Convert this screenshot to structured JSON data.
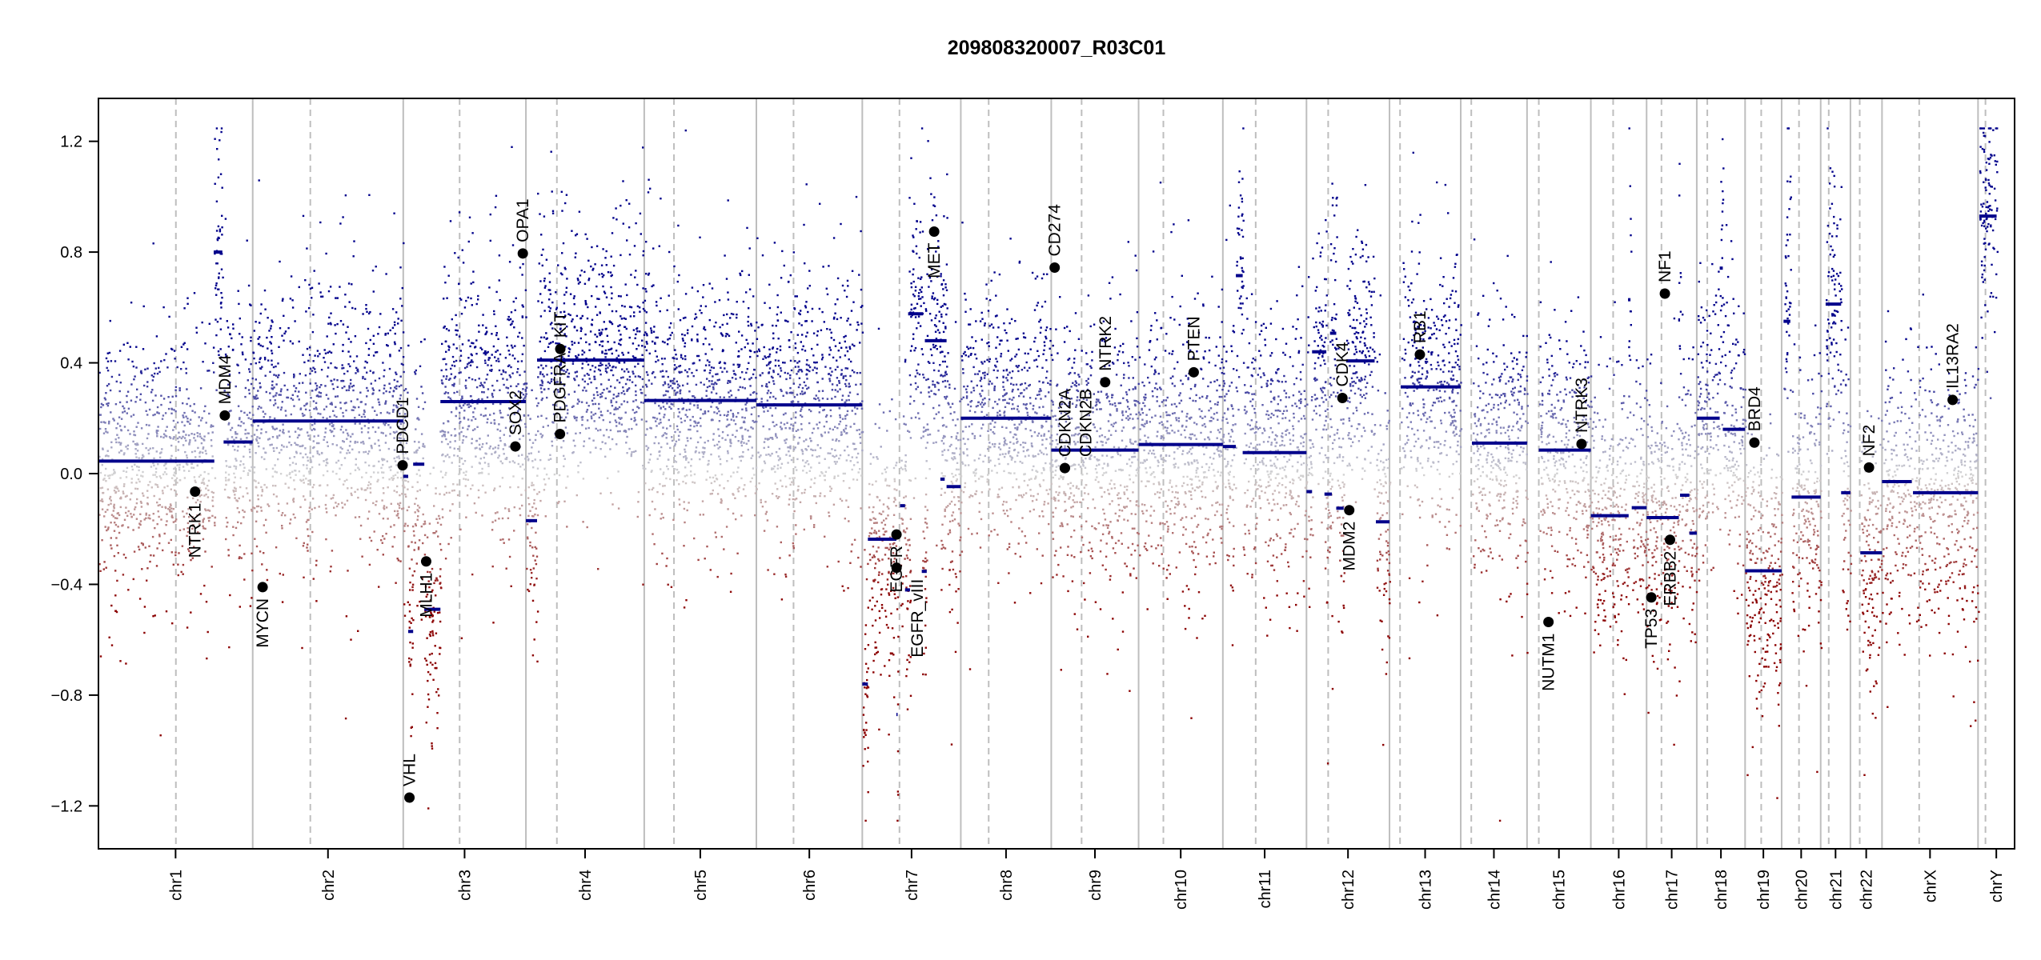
{
  "chart_data": {
    "type": "scatter",
    "title": "209808320007_R03C01",
    "xlabel": "",
    "ylabel": "",
    "ylim": [
      -1.355,
      1.355
    ],
    "yticks": [
      "-1.2",
      "-0.8",
      "-0.4",
      "0.0",
      "0.4",
      "0.8",
      "1.2"
    ],
    "colors": {
      "loss": "#8b0000",
      "neutral": "#d3d3d3",
      "gain": "#00008b",
      "segment": "#00008b",
      "gene": "#000000",
      "chrom_line": "#bebebe"
    },
    "chromosomes": [
      {
        "name": "chr1",
        "length_mb": 249,
        "centromere_mb": 125
      },
      {
        "name": "chr2",
        "length_mb": 243,
        "centromere_mb": 93
      },
      {
        "name": "chr3",
        "length_mb": 198,
        "centromere_mb": 91
      },
      {
        "name": "chr4",
        "length_mb": 191,
        "centromere_mb": 50
      },
      {
        "name": "chr5",
        "length_mb": 181,
        "centromere_mb": 48
      },
      {
        "name": "chr6",
        "length_mb": 171,
        "centromere_mb": 60
      },
      {
        "name": "chr7",
        "length_mb": 159,
        "centromere_mb": 60
      },
      {
        "name": "chr8",
        "length_mb": 146,
        "centromere_mb": 45
      },
      {
        "name": "chr9",
        "length_mb": 141,
        "centromere_mb": 49
      },
      {
        "name": "chr10",
        "length_mb": 136,
        "centromere_mb": 40
      },
      {
        "name": "chr11",
        "length_mb": 135,
        "centromere_mb": 53
      },
      {
        "name": "chr12",
        "length_mb": 134,
        "centromere_mb": 35
      },
      {
        "name": "chr13",
        "length_mb": 115,
        "centromere_mb": 17
      },
      {
        "name": "chr14",
        "length_mb": 107,
        "centromere_mb": 17
      },
      {
        "name": "chr15",
        "length_mb": 103,
        "centromere_mb": 19
      },
      {
        "name": "chr16",
        "length_mb": 90,
        "centromere_mb": 36
      },
      {
        "name": "chr17",
        "length_mb": 81,
        "centromere_mb": 24
      },
      {
        "name": "chr18",
        "length_mb": 78,
        "centromere_mb": 17
      },
      {
        "name": "chr19",
        "length_mb": 59,
        "centromere_mb": 26
      },
      {
        "name": "chr20",
        "length_mb": 63,
        "centromere_mb": 28
      },
      {
        "name": "chr21",
        "length_mb": 48,
        "centromere_mb": 13
      },
      {
        "name": "chr22",
        "length_mb": 51,
        "centromere_mb": 15
      },
      {
        "name": "chrX",
        "length_mb": 155,
        "centromere_mb": 60
      },
      {
        "name": "chrY",
        "length_mb": 59,
        "centromere_mb": 12
      }
    ],
    "segments": [
      [
        "chr1",
        0,
        187,
        0.045
      ],
      [
        "chr1",
        186,
        200,
        0.8
      ],
      [
        "chr1",
        202,
        249,
        0.114
      ],
      [
        "chr2",
        0,
        243,
        0.19
      ],
      [
        "chr3",
        0,
        8,
        -0.01
      ],
      [
        "chr3",
        8,
        16,
        -0.57
      ],
      [
        "chr3",
        16,
        34,
        0.034
      ],
      [
        "chr3",
        34,
        60,
        -0.49
      ],
      [
        "chr3",
        60,
        198,
        0.26
      ],
      [
        "chr4",
        0,
        18,
        -0.17
      ],
      [
        "chr4",
        18,
        191,
        0.41
      ],
      [
        "chr5",
        0,
        181,
        0.264
      ],
      [
        "chr6",
        0,
        171,
        0.248
      ],
      [
        "chr7",
        0,
        9,
        -0.76
      ],
      [
        "chr7",
        9,
        55,
        -0.237
      ],
      [
        "chr7",
        55,
        57,
        -0.87
      ],
      [
        "chr7",
        61,
        69,
        -0.116
      ],
      [
        "chr7",
        69,
        77,
        -0.42
      ],
      [
        "chr7",
        74,
        98,
        0.577
      ],
      [
        "chr7",
        96,
        104,
        -0.353
      ],
      [
        "chr7",
        101,
        136,
        0.48
      ],
      [
        "chr7",
        126,
        133,
        -0.02
      ],
      [
        "chr7",
        136,
        159,
        -0.047
      ],
      [
        "chr8",
        0,
        146,
        0.2
      ],
      [
        "chr9",
        0,
        141,
        0.085
      ],
      [
        "chr10",
        0,
        136,
        0.105
      ],
      [
        "chr11",
        0,
        21,
        0.098
      ],
      [
        "chr11",
        21,
        32,
        0.715
      ],
      [
        "chr11",
        32,
        135,
        0.076
      ],
      [
        "chr12",
        0,
        9,
        -0.065
      ],
      [
        "chr12",
        9,
        32,
        0.44
      ],
      [
        "chr12",
        29,
        41,
        -0.074
      ],
      [
        "chr12",
        38,
        48,
        0.507
      ],
      [
        "chr12",
        48,
        60,
        -0.125
      ],
      [
        "chr12",
        64,
        110,
        0.407
      ],
      [
        "chr12",
        112,
        134,
        -0.174
      ],
      [
        "chr13",
        18,
        115,
        0.313
      ],
      [
        "chr14",
        18,
        107,
        0.11
      ],
      [
        "chr15",
        19,
        103,
        0.085
      ],
      [
        "chr16",
        0,
        61,
        -0.152
      ],
      [
        "chr16",
        60,
        64,
        0.628
      ],
      [
        "chr16",
        66,
        90,
        -0.123
      ],
      [
        "chr17",
        0,
        52,
        -0.159
      ],
      [
        "chr17",
        51,
        54,
        0.555
      ],
      [
        "chr17",
        54,
        69,
        -0.078
      ],
      [
        "chr17",
        69,
        81,
        -0.215
      ],
      [
        "chr18",
        0,
        37,
        0.2
      ],
      [
        "chr18",
        37,
        42,
        0.742
      ],
      [
        "chr18",
        42,
        78,
        0.16
      ],
      [
        "chr19",
        0,
        59,
        -0.351
      ],
      [
        "chr20",
        3,
        14,
        0.55
      ],
      [
        "chr20",
        16,
        63,
        -0.085
      ],
      [
        "chr21",
        8,
        33,
        0.612
      ],
      [
        "chr21",
        33,
        48,
        -0.069
      ],
      [
        "chr22",
        16,
        51,
        -0.286
      ],
      [
        "chrX",
        0,
        48,
        -0.029
      ],
      [
        "chrX",
        50,
        155,
        -0.069
      ],
      [
        "chrY",
        2,
        30,
        0.93
      ]
    ],
    "genes": [
      {
        "name": "NTRK1",
        "chr": "chr1",
        "pos_mb": 156,
        "value": -0.065
      },
      {
        "name": "MDM4",
        "chr": "chr1",
        "pos_mb": 204,
        "value": 0.21
      },
      {
        "name": "MYCN",
        "chr": "chr2",
        "pos_mb": 16,
        "value": -0.41
      },
      {
        "name": "PDCD1",
        "chr": "chr2",
        "pos_mb": 242,
        "value": 0.03
      },
      {
        "name": "VHL",
        "chr": "chr3",
        "pos_mb": 10,
        "value": -1.17
      },
      {
        "name": "MLH1",
        "chr": "chr3",
        "pos_mb": 37,
        "value": -0.317
      },
      {
        "name": "SOX2",
        "chr": "chr3",
        "pos_mb": 181,
        "value": 0.098
      },
      {
        "name": "OPA1",
        "chr": "chr3",
        "pos_mb": 193,
        "value": 0.795
      },
      {
        "name": "PDGFRA",
        "chr": "chr4",
        "pos_mb": 55,
        "value": 0.143
      },
      {
        "name": "KIT",
        "chr": "chr4",
        "pos_mb": 55.5,
        "value": 0.45
      },
      {
        "name": "EGFR",
        "chr": "chr7",
        "pos_mb": 55.2,
        "value": -0.22
      },
      {
        "name": "EGFR_vIII",
        "chr": "chr7",
        "pos_mb": 55.3,
        "value": -0.34
      },
      {
        "name": "MET",
        "chr": "chr7",
        "pos_mb": 116,
        "value": 0.874
      },
      {
        "name": "CD274",
        "chr": "chr9",
        "pos_mb": 5.5,
        "value": 0.744
      },
      {
        "name": "CDKN2A",
        "chr": "chr9",
        "pos_mb": 21.9,
        "value": 0.02
      },
      {
        "name": "CDKN2B",
        "chr": "chr9",
        "pos_mb": 22.0,
        "value": 0.02
      },
      {
        "name": "NTRK2",
        "chr": "chr9",
        "pos_mb": 87,
        "value": 0.33
      },
      {
        "name": "PTEN",
        "chr": "chr10",
        "pos_mb": 89,
        "value": 0.366
      },
      {
        "name": "CDK4",
        "chr": "chr12",
        "pos_mb": 58,
        "value": 0.273
      },
      {
        "name": "MDM2",
        "chr": "chr12",
        "pos_mb": 69,
        "value": -0.132
      },
      {
        "name": "RB1",
        "chr": "chr13",
        "pos_mb": 49,
        "value": 0.43
      },
      {
        "name": "NUTM1",
        "chr": "chr15",
        "pos_mb": 34.6,
        "value": -0.536
      },
      {
        "name": "NTRK3",
        "chr": "chr15",
        "pos_mb": 88,
        "value": 0.107
      },
      {
        "name": "TP53",
        "chr": "chr17",
        "pos_mb": 7.6,
        "value": -0.447
      },
      {
        "name": "NF1",
        "chr": "chr17",
        "pos_mb": 29.5,
        "value": 0.65
      },
      {
        "name": "ERBB2",
        "chr": "chr17",
        "pos_mb": 37.8,
        "value": -0.239
      },
      {
        "name": "BRD4",
        "chr": "chr19",
        "pos_mb": 15,
        "value": 0.112
      },
      {
        "name": "NF2",
        "chr": "chr22",
        "pos_mb": 30,
        "value": 0.022
      },
      {
        "name": "IL13RA2",
        "chr": "chrX",
        "pos_mb": 114,
        "value": 0.266
      }
    ]
  }
}
